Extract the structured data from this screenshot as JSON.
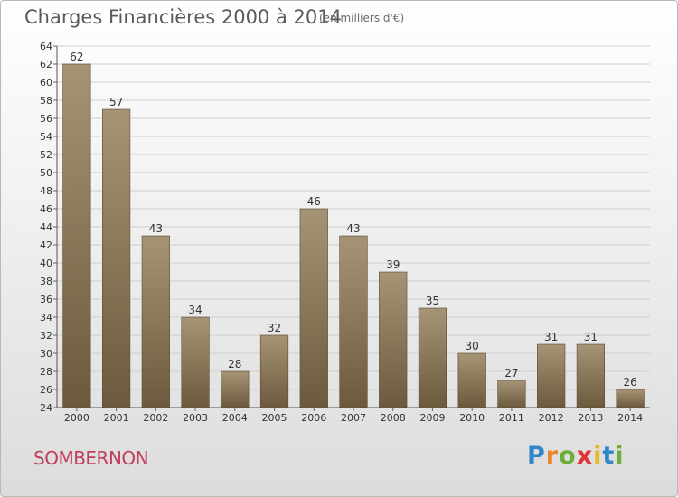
{
  "title": "Charges Financières 2000 à 2014",
  "subtitle": "(en milliers d'€)",
  "commune": "SOMBERNON",
  "brand": {
    "letters": [
      "P",
      "r",
      "o",
      "x",
      "i",
      "t",
      "i"
    ],
    "colors": [
      "#2f86c8",
      "#e8862a",
      "#6cae3a",
      "#e03030",
      "#e8b82a",
      "#2f86c8",
      "#6cae3a"
    ]
  },
  "colors": {
    "bar_top": "#a69476",
    "bar_bottom": "#6c5a3e",
    "grid": "#cfcfcf"
  },
  "chart_data": {
    "type": "bar",
    "categories": [
      "2000",
      "2001",
      "2002",
      "2003",
      "2004",
      "2005",
      "2006",
      "2007",
      "2008",
      "2009",
      "2010",
      "2011",
      "2012",
      "2013",
      "2014"
    ],
    "values": [
      62,
      57,
      43,
      34,
      28,
      32,
      46,
      43,
      39,
      35,
      30,
      27,
      31,
      31,
      26
    ],
    "ylim": [
      24,
      64
    ],
    "yticks": [
      24,
      26,
      28,
      30,
      32,
      34,
      36,
      38,
      40,
      42,
      44,
      46,
      48,
      50,
      52,
      54,
      56,
      58,
      60,
      62,
      64
    ],
    "grid": true,
    "data_labels": true
  }
}
